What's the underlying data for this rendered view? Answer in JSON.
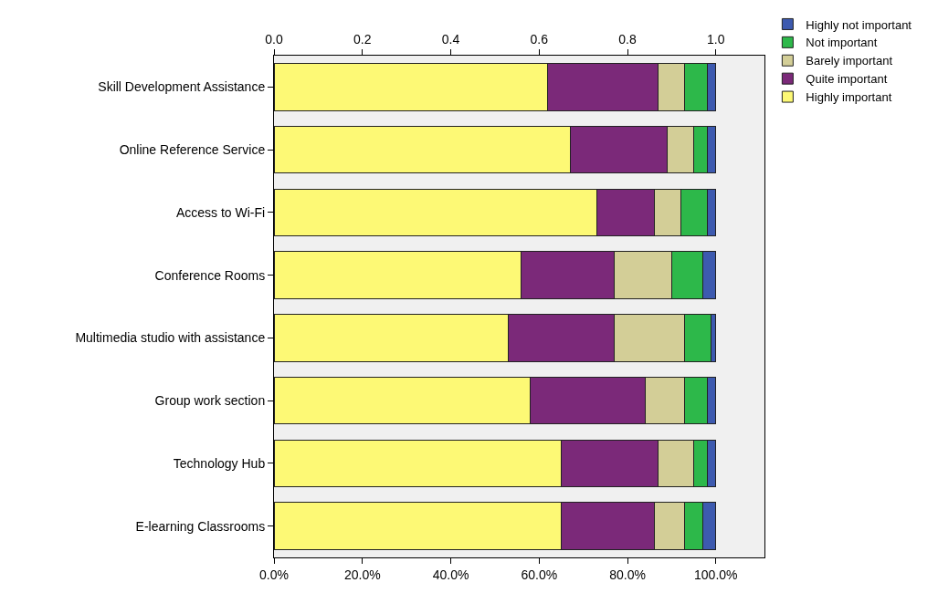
{
  "chart_data": {
    "type": "bar",
    "orientation": "horizontal",
    "stacked": true,
    "categories": [
      "Skill Development Assistance",
      "Online Reference Service",
      "Access to Wi-Fi",
      "Conference Rooms",
      "Multimedia studio with assistance",
      "Group work section",
      "Technology Hub",
      "E-learning Classrooms"
    ],
    "series": [
      {
        "name": "Highly important",
        "color": "#fdf975",
        "values": [
          0.62,
          0.67,
          0.73,
          0.56,
          0.53,
          0.58,
          0.65,
          0.65
        ]
      },
      {
        "name": "Quite important",
        "color": "#7b2979",
        "values": [
          0.25,
          0.22,
          0.13,
          0.21,
          0.24,
          0.26,
          0.22,
          0.21
        ]
      },
      {
        "name": "Barely important",
        "color": "#d3ce97",
        "values": [
          0.06,
          0.06,
          0.06,
          0.13,
          0.16,
          0.09,
          0.08,
          0.07
        ]
      },
      {
        "name": "Not important",
        "color": "#2db84a",
        "values": [
          0.05,
          0.03,
          0.06,
          0.07,
          0.06,
          0.05,
          0.03,
          0.04
        ]
      },
      {
        "name": "Highly not important",
        "color": "#3d5aaf",
        "values": [
          0.02,
          0.02,
          0.02,
          0.03,
          0.01,
          0.02,
          0.02,
          0.03
        ]
      }
    ],
    "xlim": [
      0,
      1.11
    ],
    "xticks": [
      {
        "value": 0,
        "label": "0.0%"
      },
      {
        "value": 0.2,
        "label": "20.0%"
      },
      {
        "value": 0.4,
        "label": "40.0%"
      },
      {
        "value": 0.6,
        "label": "60.0%"
      },
      {
        "value": 0.8,
        "label": "80.0%"
      },
      {
        "value": 1.0,
        "label": "100.0%"
      }
    ],
    "x2lim": [
      0,
      1.11
    ],
    "x2ticks": [
      {
        "value": 0,
        "label": "0.0"
      },
      {
        "value": 0.2,
        "label": "0.2"
      },
      {
        "value": 0.4,
        "label": "0.4"
      },
      {
        "value": 0.6,
        "label": "0.6"
      },
      {
        "value": 0.8,
        "label": "0.8"
      },
      {
        "value": 1.0,
        "label": "1.0"
      }
    ],
    "grid": false,
    "legend": "top right"
  }
}
